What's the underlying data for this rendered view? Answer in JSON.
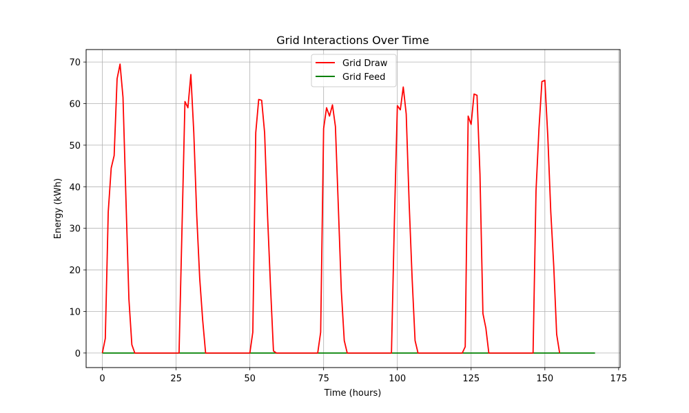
{
  "chart_data": {
    "type": "line",
    "title": "Grid Interactions Over Time",
    "xlabel": "Time (hours)",
    "ylabel": "Energy (kWh)",
    "xlim": [
      -5.5,
      175.5
    ],
    "ylim": [
      -3.5,
      73
    ],
    "xticks": [
      0,
      25,
      50,
      75,
      100,
      125,
      150,
      175
    ],
    "yticks": [
      0,
      10,
      20,
      30,
      40,
      50,
      60,
      70
    ],
    "grid": true,
    "legend_position": "top-center",
    "series": [
      {
        "name": "Grid Draw",
        "color": "#ff0000",
        "points": [
          [
            0,
            0
          ],
          [
            1,
            3.5
          ],
          [
            2,
            34
          ],
          [
            3,
            44.5
          ],
          [
            4,
            47.5
          ],
          [
            5,
            66
          ],
          [
            6,
            69.5
          ],
          [
            7,
            61.5
          ],
          [
            8,
            37
          ],
          [
            9,
            13
          ],
          [
            10,
            2
          ],
          [
            11,
            0
          ],
          [
            26,
            0
          ],
          [
            27,
            30
          ],
          [
            28,
            60.5
          ],
          [
            29,
            59
          ],
          [
            30,
            67
          ],
          [
            31,
            53
          ],
          [
            32,
            33
          ],
          [
            33,
            18
          ],
          [
            34,
            8
          ],
          [
            35,
            0
          ],
          [
            50,
            0
          ],
          [
            51,
            5
          ],
          [
            52,
            53
          ],
          [
            53,
            61
          ],
          [
            54,
            60.8
          ],
          [
            55,
            53
          ],
          [
            56,
            33
          ],
          [
            57,
            16
          ],
          [
            58,
            0.5
          ],
          [
            59,
            0
          ],
          [
            73,
            0
          ],
          [
            74,
            5
          ],
          [
            75,
            54
          ],
          [
            76,
            59
          ],
          [
            77,
            57
          ],
          [
            78,
            59.7
          ],
          [
            79,
            54.5
          ],
          [
            80,
            35
          ],
          [
            81,
            15
          ],
          [
            82,
            3
          ],
          [
            83,
            0
          ],
          [
            98,
            0
          ],
          [
            99,
            32
          ],
          [
            100,
            59.5
          ],
          [
            101,
            58.5
          ],
          [
            102,
            64
          ],
          [
            103,
            57.5
          ],
          [
            104,
            36
          ],
          [
            105,
            18
          ],
          [
            106,
            3
          ],
          [
            107,
            0
          ],
          [
            122,
            0
          ],
          [
            123,
            1.5
          ],
          [
            124,
            57
          ],
          [
            125,
            55
          ],
          [
            126,
            62.3
          ],
          [
            127,
            62
          ],
          [
            128,
            43
          ],
          [
            129,
            9.5
          ],
          [
            130,
            6
          ],
          [
            131,
            0
          ],
          [
            146,
            0
          ],
          [
            147,
            39
          ],
          [
            148,
            54
          ],
          [
            149,
            65.3
          ],
          [
            150,
            65.6
          ],
          [
            151,
            52
          ],
          [
            152,
            34
          ],
          [
            153,
            21
          ],
          [
            154,
            4.5
          ],
          [
            155,
            0
          ]
        ]
      },
      {
        "name": "Grid Feed",
        "color": "#008000",
        "points": [
          [
            0,
            0
          ],
          [
            167,
            0
          ]
        ]
      }
    ]
  }
}
